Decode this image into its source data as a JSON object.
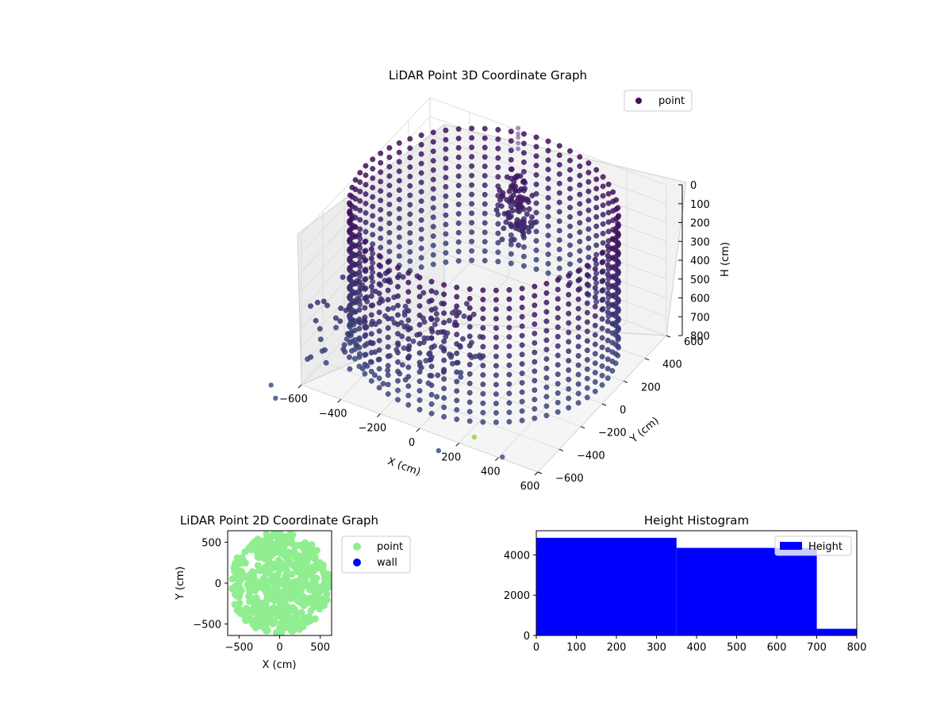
{
  "chart_data": [
    {
      "type": "scatter",
      "projection": "3d",
      "title": "LiDAR Point 3D Coordinate Graph",
      "xlabel": "X (cm)",
      "ylabel": "Y (cm)",
      "zlabel": "H (cm)",
      "xlim": [
        -600,
        600
      ],
      "ylim": [
        -600,
        600
      ],
      "zlim": [
        0,
        800
      ],
      "z_inverted": true,
      "xticks": [
        "-600",
        "-400",
        "-200",
        "0",
        "200",
        "400",
        "600"
      ],
      "yticks": [
        "-600",
        "-400",
        "-200",
        "0",
        "200",
        "400",
        "600"
      ],
      "zticks": [
        "0",
        "100",
        "200",
        "300",
        "400",
        "500",
        "600",
        "700",
        "800"
      ],
      "legend": {
        "entries": [
          "point"
        ],
        "placement": "upper-right"
      },
      "colormap": "viridis",
      "point_color": "#440f5c",
      "series": [
        {
          "name": "point",
          "description_of_shape": "cylindrical wall of radius ~600 cm sampled every ~50 cm in height from 0 to 800",
          "radius": 600,
          "heights": [
            0,
            50,
            100,
            150,
            200,
            250,
            300,
            350,
            400,
            450,
            500,
            550,
            600,
            650,
            700
          ]
        }
      ]
    },
    {
      "type": "scatter",
      "title": "LiDAR Point 2D Coordinate Graph",
      "xlabel": "X (cm)",
      "ylabel": "Y (cm)",
      "xlim": [
        -640,
        640
      ],
      "ylim": [
        -640,
        640
      ],
      "xticks": [
        "-500",
        "0",
        "500"
      ],
      "yticks": [
        "500",
        "0",
        "-500"
      ],
      "legend": {
        "entries": [
          "point",
          "wall"
        ],
        "placement": "outside-right"
      },
      "series": [
        {
          "name": "point",
          "color": "#90ee90"
        },
        {
          "name": "wall",
          "color": "#0000ff"
        }
      ]
    },
    {
      "type": "histogram",
      "title": "Height Histogram",
      "xlim": [
        0,
        800
      ],
      "ylim": [
        0,
        5200
      ],
      "xticks": [
        "0",
        "100",
        "200",
        "300",
        "400",
        "500",
        "600",
        "700",
        "800"
      ],
      "yticks": [
        "0",
        "2000",
        "4000"
      ],
      "legend": {
        "entries": [
          "Height"
        ],
        "placement": "upper-right"
      },
      "series": [
        {
          "name": "Height",
          "color": "#0000ff",
          "bins": [
            {
              "from": 0,
              "to": 350,
              "count": 4850
            },
            {
              "from": 350,
              "to": 700,
              "count": 4350
            },
            {
              "from": 700,
              "to": 800,
              "count": 330
            }
          ]
        }
      ]
    }
  ]
}
